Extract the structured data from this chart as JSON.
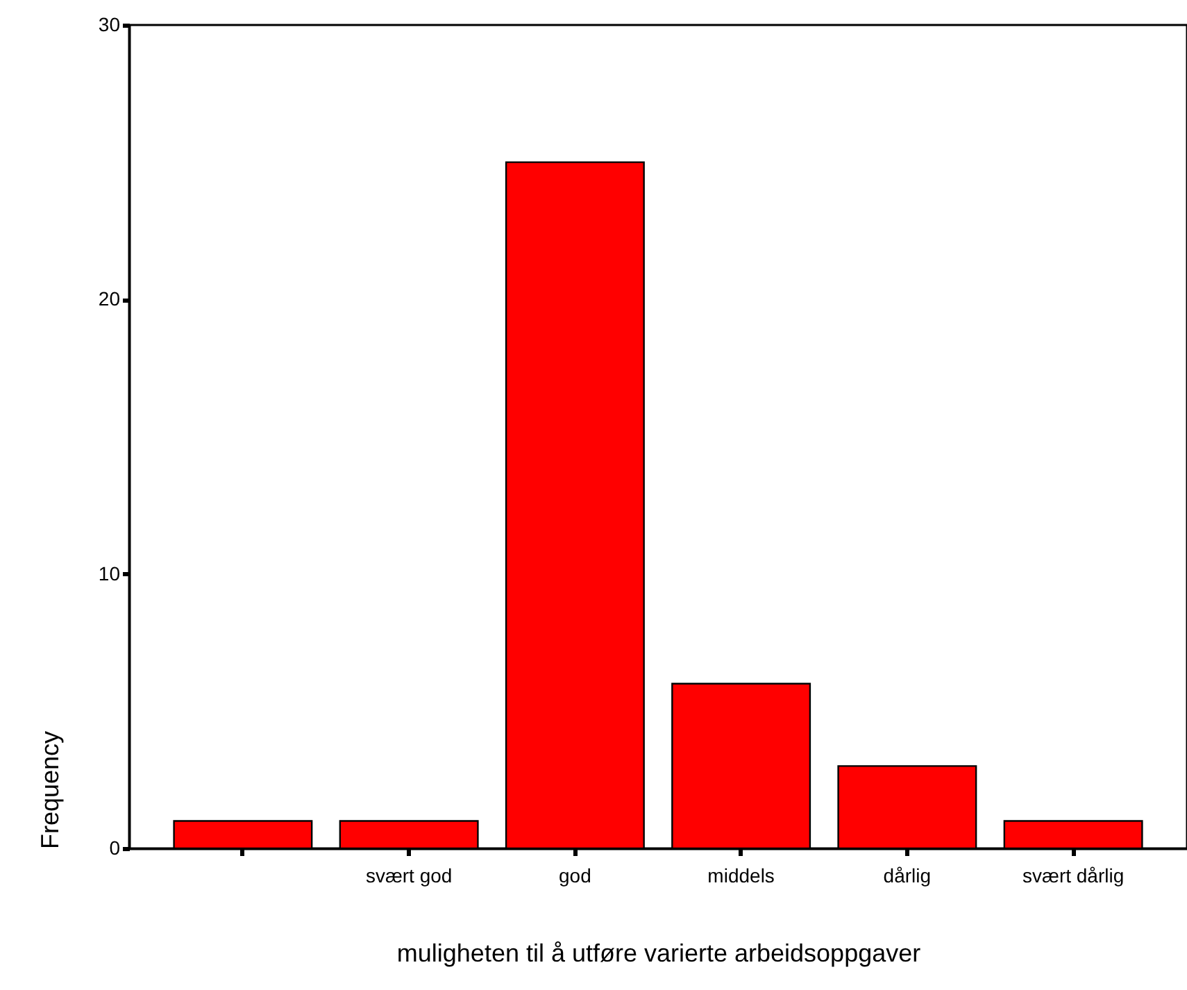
{
  "chart_data": {
    "type": "bar",
    "xlabel": "muligheten til å utføre varierte arbeidsoppgaver",
    "ylabel": "Frequency",
    "categories": [
      null,
      "svært god",
      "god",
      "middels",
      "dårlig",
      "svært dårlig"
    ],
    "values": [
      1,
      1,
      25,
      6,
      3,
      1
    ],
    "color": "#ff0000",
    "ylim": [
      0,
      30
    ],
    "yticks": [
      0,
      10,
      20,
      30
    ],
    "grid": false
  }
}
